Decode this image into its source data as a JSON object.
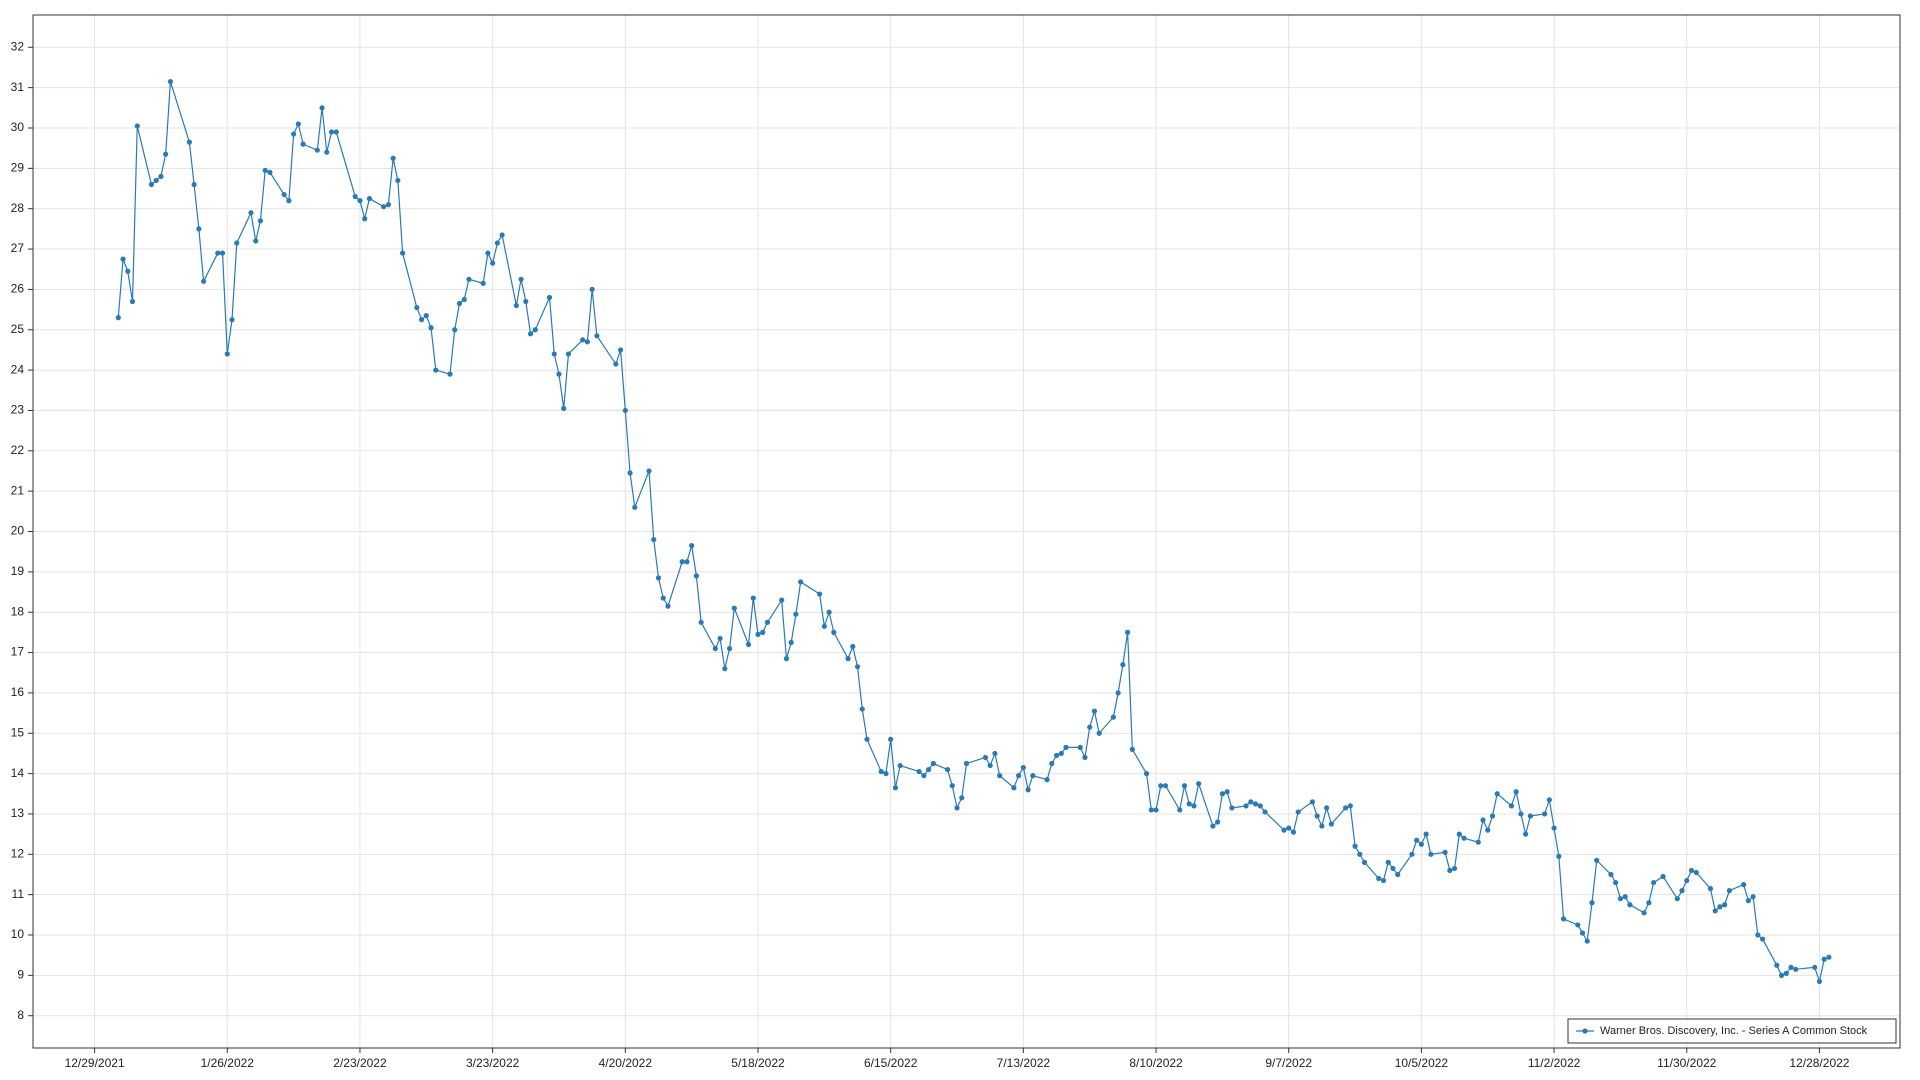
{
  "chart_data": {
    "type": "line",
    "x": [
      "1/3/2022",
      "1/4/2022",
      "1/5/2022",
      "1/6/2022",
      "1/7/2022",
      "1/10/2022",
      "1/11/2022",
      "1/12/2022",
      "1/13/2022",
      "1/14/2022",
      "1/18/2022",
      "1/19/2022",
      "1/20/2022",
      "1/21/2022",
      "1/24/2022",
      "1/25/2022",
      "1/26/2022",
      "1/27/2022",
      "1/28/2022",
      "1/31/2022",
      "2/1/2022",
      "2/2/2022",
      "2/3/2022",
      "2/4/2022",
      "2/7/2022",
      "2/8/2022",
      "2/9/2022",
      "2/10/2022",
      "2/11/2022",
      "2/14/2022",
      "2/15/2022",
      "2/16/2022",
      "2/17/2022",
      "2/18/2022",
      "2/22/2022",
      "2/23/2022",
      "2/24/2022",
      "2/25/2022",
      "2/28/2022",
      "3/1/2022",
      "3/2/2022",
      "3/3/2022",
      "3/4/2022",
      "3/7/2022",
      "3/8/2022",
      "3/9/2022",
      "3/10/2022",
      "3/11/2022",
      "3/14/2022",
      "3/15/2022",
      "3/16/2022",
      "3/17/2022",
      "3/18/2022",
      "3/21/2022",
      "3/22/2022",
      "3/23/2022",
      "3/24/2022",
      "3/25/2022",
      "3/28/2022",
      "3/29/2022",
      "3/30/2022",
      "3/31/2022",
      "4/1/2022",
      "4/4/2022",
      "4/5/2022",
      "4/6/2022",
      "4/7/2022",
      "4/8/2022",
      "4/11/2022",
      "4/12/2022",
      "4/13/2022",
      "4/14/2022",
      "4/18/2022",
      "4/19/2022",
      "4/20/2022",
      "4/21/2022",
      "4/22/2022",
      "4/25/2022",
      "4/26/2022",
      "4/27/2022",
      "4/28/2022",
      "4/29/2022",
      "5/2/2022",
      "5/3/2022",
      "5/4/2022",
      "5/5/2022",
      "5/6/2022",
      "5/9/2022",
      "5/10/2022",
      "5/11/2022",
      "5/12/2022",
      "5/13/2022",
      "5/16/2022",
      "5/17/2022",
      "5/18/2022",
      "5/19/2022",
      "5/20/2022",
      "5/23/2022",
      "5/24/2022",
      "5/25/2022",
      "5/26/2022",
      "5/27/2022",
      "5/31/2022",
      "6/1/2022",
      "6/2/2022",
      "6/3/2022",
      "6/6/2022",
      "6/7/2022",
      "6/8/2022",
      "6/9/2022",
      "6/10/2022",
      "6/13/2022",
      "6/14/2022",
      "6/15/2022",
      "6/16/2022",
      "6/17/2022",
      "6/21/2022",
      "6/22/2022",
      "6/23/2022",
      "6/24/2022",
      "6/27/2022",
      "6/28/2022",
      "6/29/2022",
      "6/30/2022",
      "7/1/2022",
      "7/5/2022",
      "7/6/2022",
      "7/7/2022",
      "7/8/2022",
      "7/11/2022",
      "7/12/2022",
      "7/13/2022",
      "7/14/2022",
      "7/15/2022",
      "7/18/2022",
      "7/19/2022",
      "7/20/2022",
      "7/21/2022",
      "7/22/2022",
      "7/25/2022",
      "7/26/2022",
      "7/27/2022",
      "7/28/2022",
      "7/29/2022",
      "8/1/2022",
      "8/2/2022",
      "8/3/2022",
      "8/4/2022",
      "8/5/2022",
      "8/8/2022",
      "8/9/2022",
      "8/10/2022",
      "8/11/2022",
      "8/12/2022",
      "8/15/2022",
      "8/16/2022",
      "8/17/2022",
      "8/18/2022",
      "8/19/2022",
      "8/22/2022",
      "8/23/2022",
      "8/24/2022",
      "8/25/2022",
      "8/26/2022",
      "8/29/2022",
      "8/30/2022",
      "8/31/2022",
      "9/1/2022",
      "9/2/2022",
      "9/6/2022",
      "9/7/2022",
      "9/8/2022",
      "9/9/2022",
      "9/12/2022",
      "9/13/2022",
      "9/14/2022",
      "9/15/2022",
      "9/16/2022",
      "9/19/2022",
      "9/20/2022",
      "9/21/2022",
      "9/22/2022",
      "9/23/2022",
      "9/26/2022",
      "9/27/2022",
      "9/28/2022",
      "9/29/2022",
      "9/30/2022",
      "10/3/2022",
      "10/4/2022",
      "10/5/2022",
      "10/6/2022",
      "10/7/2022",
      "10/10/2022",
      "10/11/2022",
      "10/12/2022",
      "10/13/2022",
      "10/14/2022",
      "10/17/2022",
      "10/18/2022",
      "10/19/2022",
      "10/20/2022",
      "10/21/2022",
      "10/24/2022",
      "10/25/2022",
      "10/26/2022",
      "10/27/2022",
      "10/28/2022",
      "10/31/2022",
      "11/1/2022",
      "11/2/2022",
      "11/3/2022",
      "11/4/2022",
      "11/7/2022",
      "11/8/2022",
      "11/9/2022",
      "11/10/2022",
      "11/11/2022",
      "11/14/2022",
      "11/15/2022",
      "11/16/2022",
      "11/17/2022",
      "11/18/2022",
      "11/21/2022",
      "11/22/2022",
      "11/23/2022",
      "11/25/2022",
      "11/28/2022",
      "11/29/2022",
      "11/30/2022",
      "12/1/2022",
      "12/2/2022",
      "12/5/2022",
      "12/6/2022",
      "12/7/2022",
      "12/8/2022",
      "12/9/2022",
      "12/12/2022",
      "12/13/2022",
      "12/14/2022",
      "12/15/2022",
      "12/16/2022",
      "12/19/2022",
      "12/20/2022",
      "12/21/2022",
      "12/22/2022",
      "12/23/2022",
      "12/27/2022",
      "12/28/2022",
      "12/29/2022",
      "12/30/2022"
    ],
    "series": [
      {
        "name": "Warner Bros. Discovery, Inc. - Series A Common Stock",
        "color": "#2a7ab5",
        "values": [
          25.3,
          26.75,
          26.45,
          25.7,
          30.05,
          28.6,
          28.7,
          28.8,
          29.35,
          31.15,
          29.65,
          28.6,
          27.5,
          26.2,
          26.9,
          26.9,
          24.4,
          25.25,
          27.15,
          27.9,
          27.2,
          27.7,
          28.95,
          28.9,
          28.35,
          28.2,
          29.85,
          30.1,
          29.6,
          29.45,
          30.5,
          29.4,
          29.9,
          29.9,
          28.3,
          28.2,
          27.75,
          28.25,
          28.05,
          28.1,
          29.25,
          28.7,
          26.9,
          25.55,
          25.25,
          25.35,
          25.05,
          24.0,
          23.9,
          25.0,
          25.65,
          25.75,
          26.25,
          26.15,
          26.9,
          26.65,
          27.15,
          27.35,
          25.6,
          26.25,
          25.7,
          24.9,
          25.0,
          25.8,
          24.4,
          23.9,
          23.05,
          24.4,
          24.75,
          24.7,
          26.0,
          24.85,
          24.15,
          24.5,
          23.0,
          21.45,
          20.6,
          21.5,
          19.8,
          18.85,
          18.35,
          18.15,
          19.25,
          19.25,
          19.65,
          18.9,
          17.75,
          17.1,
          17.35,
          16.6,
          17.1,
          18.1,
          17.2,
          18.35,
          17.45,
          17.5,
          17.75,
          18.3,
          16.85,
          17.25,
          17.95,
          18.75,
          18.45,
          17.65,
          18.0,
          17.5,
          16.85,
          17.15,
          16.65,
          15.6,
          14.85,
          14.05,
          14.0,
          14.85,
          13.65,
          14.2,
          14.05,
          13.95,
          14.1,
          14.25,
          14.1,
          13.7,
          13.15,
          13.4,
          14.25,
          14.4,
          14.2,
          14.5,
          13.95,
          13.65,
          13.95,
          14.15,
          13.6,
          13.95,
          13.85,
          14.25,
          14.45,
          14.5,
          14.65,
          14.65,
          14.4,
          15.15,
          15.55,
          15.0,
          15.4,
          16.0,
          16.7,
          17.5,
          14.6,
          14.0,
          13.1,
          13.1,
          13.7,
          13.7,
          13.1,
          13.7,
          13.25,
          13.2,
          13.75,
          12.7,
          12.8,
          13.5,
          13.55,
          13.15,
          13.2,
          13.3,
          13.25,
          13.2,
          13.05,
          12.6,
          12.65,
          12.55,
          13.05,
          13.3,
          12.95,
          12.7,
          13.15,
          12.75,
          13.15,
          13.2,
          12.2,
          12.0,
          11.8,
          11.4,
          11.35,
          11.8,
          11.65,
          11.5,
          12.0,
          12.35,
          12.25,
          12.5,
          12.0,
          12.05,
          11.6,
          11.65,
          12.5,
          12.4,
          12.3,
          12.85,
          12.6,
          12.95,
          13.5,
          13.2,
          13.55,
          13.0,
          12.5,
          12.95,
          13.0,
          13.35,
          12.65,
          11.95,
          10.4,
          10.25,
          10.05,
          9.85,
          10.8,
          11.85,
          11.5,
          11.3,
          10.9,
          10.95,
          10.75,
          10.55,
          10.8,
          11.3,
          11.45,
          10.9,
          11.1,
          11.35,
          11.6,
          11.55,
          11.15,
          10.6,
          10.7,
          10.75,
          11.1,
          11.25,
          10.85,
          10.95,
          10.0,
          9.9,
          9.25,
          9.0,
          9.05,
          9.2,
          9.15,
          9.2,
          8.85,
          9.4,
          9.45
        ]
      }
    ],
    "xlim": [
      "12/16/2021",
      "1/14/2023"
    ],
    "xticks": [
      "12/29/2021",
      "1/26/2022",
      "2/23/2022",
      "3/23/2022",
      "4/20/2022",
      "5/18/2022",
      "6/15/2022",
      "7/13/2022",
      "8/10/2022",
      "9/7/2022",
      "10/5/2022",
      "11/2/2022",
      "11/30/2022",
      "12/28/2022"
    ],
    "ylim": [
      7.2,
      32.8
    ],
    "yticks": [
      8,
      9,
      10,
      11,
      12,
      13,
      14,
      15,
      16,
      17,
      18,
      19,
      20,
      21,
      22,
      23,
      24,
      25,
      26,
      27,
      28,
      29,
      30,
      31,
      32
    ],
    "grid": true,
    "markers": true,
    "legend": "lower right"
  }
}
